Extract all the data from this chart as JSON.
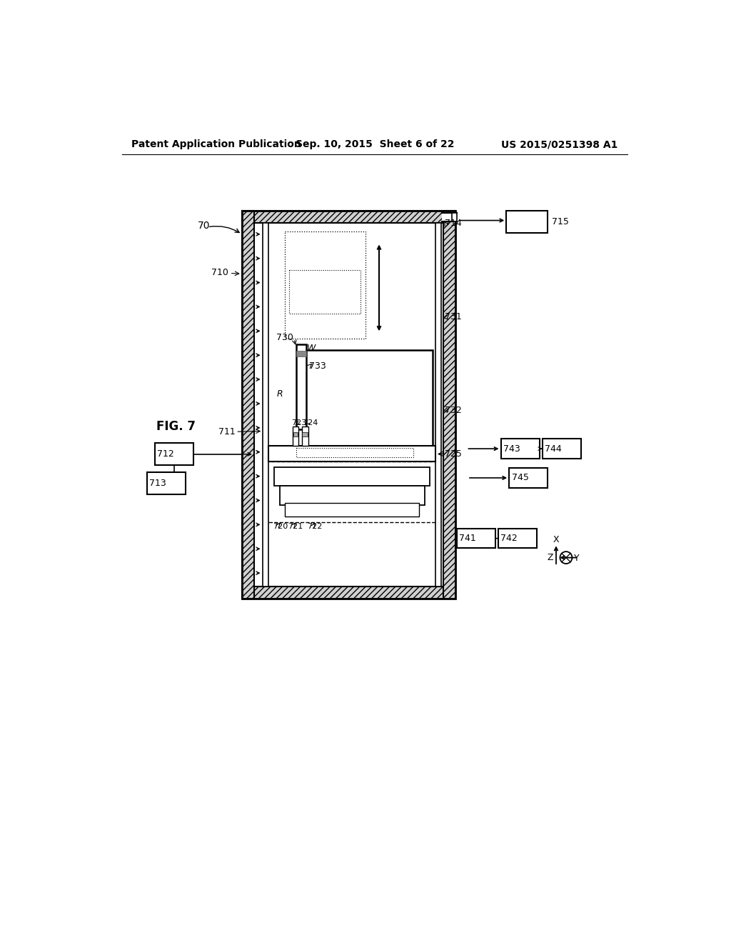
{
  "bg_color": "#ffffff",
  "header_left": "Patent Application Publication",
  "header_mid": "Sep. 10, 2015  Sheet 6 of 22",
  "header_right": "US 2015/0251398 A1"
}
